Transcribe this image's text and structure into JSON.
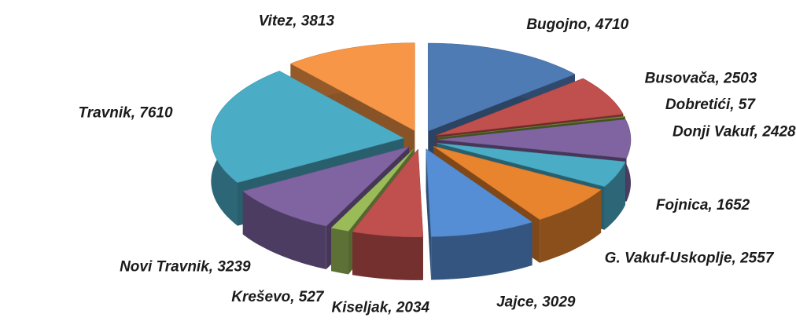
{
  "chart_data": {
    "type": "pie",
    "values": [
      4710,
      2503,
      57,
      2428,
      1652,
      2557,
      3029,
      2034,
      527,
      3239,
      7610,
      3813
    ],
    "value_labels": [
      "Bugojno, 4710",
      "Busovača, 2503",
      "Dobretići, 57",
      "Donji Vakuf, 2428",
      "Fojnica, 1652",
      "G. Vakuf-Uskoplje, 2557",
      "Jajce, 3029",
      "Kiseljak, 2034",
      "Kreševo, 527",
      "Novi Travnik, 3239",
      "Travnik, 7610",
      "Vitez, 3813"
    ],
    "colors": [
      "#4f7bb5",
      "#c0504d",
      "#77933c",
      "#8064a2",
      "#4bacc6",
      "#e8832e",
      "#558ed5",
      "#c0504d",
      "#9bbb59",
      "#8064a2",
      "#4bacc6",
      "#f79646"
    ]
  }
}
